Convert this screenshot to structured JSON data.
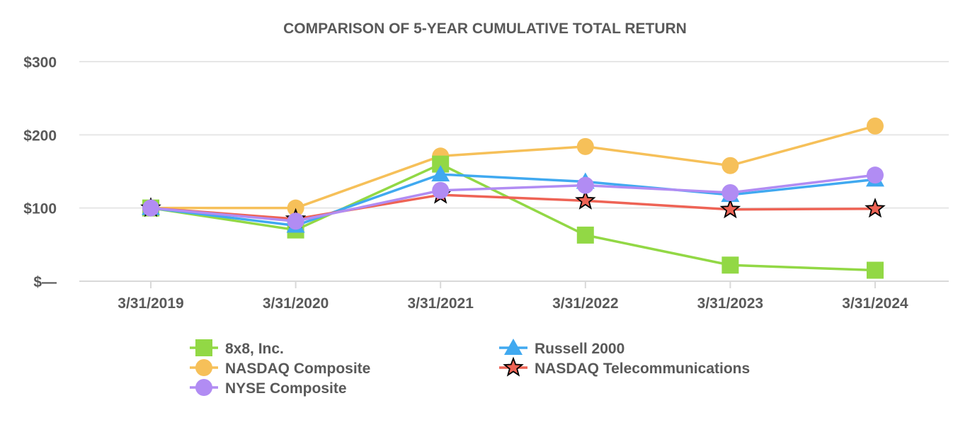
{
  "chart_data": {
    "type": "line",
    "title": "COMPARISON OF 5-YEAR CUMULATIVE TOTAL RETURN",
    "xlabel": "",
    "ylabel": "",
    "categories": [
      "3/31/2019",
      "3/31/2020",
      "3/31/2021",
      "3/31/2022",
      "3/31/2023",
      "3/31/2024"
    ],
    "ylim": [
      0,
      300
    ],
    "yticks": [
      {
        "value": 0,
        "label": "$—"
      },
      {
        "value": 100,
        "label": "$100"
      },
      {
        "value": 200,
        "label": "$200"
      },
      {
        "value": 300,
        "label": "$300"
      }
    ],
    "grid": true,
    "legend_position": "bottom",
    "series": [
      {
        "name": "8x8, Inc.",
        "color": "#92D845",
        "marker": "square",
        "values": [
          100,
          70,
          160,
          63,
          22,
          15
        ]
      },
      {
        "name": "NASDAQ Composite",
        "color": "#F6C059",
        "marker": "circle",
        "values": [
          100,
          100,
          171,
          184,
          158,
          212
        ]
      },
      {
        "name": "NYSE Composite",
        "color": "#B18CF3",
        "marker": "circle",
        "values": [
          100,
          82,
          124,
          131,
          121,
          145
        ]
      },
      {
        "name": "Russell 2000",
        "color": "#40A9F0",
        "marker": "triangle",
        "values": [
          100,
          76,
          146,
          136,
          118,
          139
        ]
      },
      {
        "name": "NASDAQ Telecommunications",
        "color": "#EE6355",
        "marker": "star",
        "values": [
          100,
          85,
          118,
          110,
          98,
          99
        ]
      }
    ]
  }
}
